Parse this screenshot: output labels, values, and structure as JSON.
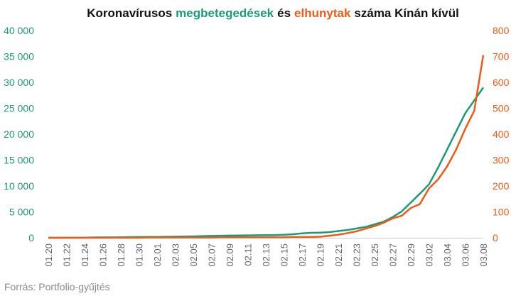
{
  "chart_data": {
    "type": "line",
    "title": [
      "Koronavírusos",
      "és",
      "száma Kínán kívül"
    ],
    "source": "Forrás: Portfolio-gyűjtés",
    "categories": [
      "01.20",
      null,
      "01.22",
      null,
      "01.24",
      null,
      "01.26",
      null,
      "01.28",
      null,
      "01.30",
      null,
      "02.01",
      null,
      "02.03",
      null,
      "02.05",
      null,
      "02.07",
      null,
      "02.09",
      null,
      "02.11",
      null,
      "02.13",
      null,
      "02.15",
      null,
      "02.17",
      null,
      "02.19",
      null,
      "02.21",
      null,
      "02.23",
      null,
      "02.25",
      null,
      "02.27",
      null,
      "02.29",
      null,
      "03.02",
      null,
      "03.04",
      null,
      "03.06",
      null,
      "03.08"
    ],
    "series": [
      {
        "name": "megbetegedések",
        "color": "#1a9b75",
        "values": [
          4,
          7,
          10,
          20,
          40,
          60,
          80,
          90,
          110,
          130,
          150,
          170,
          180,
          200,
          230,
          260,
          280,
          320,
          360,
          390,
          420,
          440,
          460,
          500,
          510,
          530,
          580,
          680,
          850,
          950,
          1000,
          1100,
          1300,
          1500,
          1800,
          2100,
          2600,
          3100,
          4000,
          5100,
          6800,
          8500,
          10300,
          13500,
          17000,
          20500,
          24000,
          26500,
          29000
        ]
      },
      {
        "name": "elhunytak",
        "color": "#f05a14",
        "axis": "y2",
        "values": [
          0,
          0,
          0,
          0,
          0,
          0,
          0,
          0,
          0,
          0,
          0,
          1,
          1,
          1,
          1,
          1,
          1,
          1,
          1,
          2,
          2,
          2,
          2,
          2,
          2,
          2,
          2,
          3,
          3,
          3,
          4,
          8,
          12,
          18,
          25,
          35,
          45,
          58,
          75,
          85,
          115,
          130,
          190,
          225,
          275,
          340,
          420,
          490,
          705
        ]
      }
    ],
    "ylim": [
      0,
      40000
    ],
    "yticks": [
      0,
      {
        "value": 5000,
        "label": "5 000"
      },
      {
        "value": 10000,
        "label": "10 000"
      },
      {
        "value": 15000,
        "label": "15 000"
      },
      {
        "value": 20000,
        "label": "20 000"
      },
      {
        "value": 25000,
        "label": "25 000"
      },
      {
        "value": 30000,
        "label": "30 000"
      },
      {
        "value": 35000,
        "label": "35 000"
      },
      {
        "value": 40000,
        "label": "40 000"
      }
    ],
    "y2lim": [
      0,
      800
    ],
    "y2ticks": [
      0,
      100,
      200,
      300,
      400,
      500,
      600,
      700,
      800
    ]
  }
}
